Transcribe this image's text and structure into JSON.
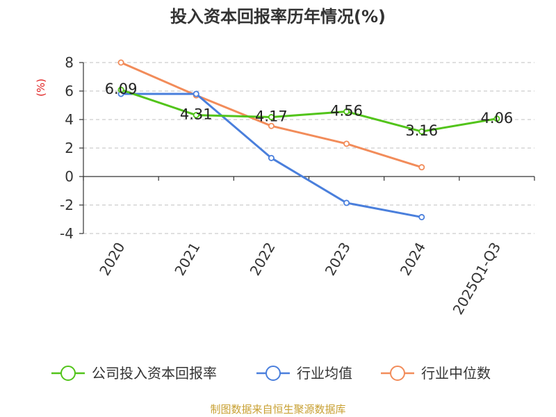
{
  "chart_data": {
    "type": "line",
    "title": "投入资本回报率历年情况(%)",
    "ylabel": "(%)",
    "xlabel": "",
    "categories": [
      "2020",
      "2021",
      "2022",
      "2023",
      "2024",
      "2025Q1-Q3"
    ],
    "ylim": [
      -4,
      8
    ],
    "yticks": [
      8,
      6,
      4,
      2,
      0,
      -2,
      -4
    ],
    "ytick_labels": [
      "8",
      "6",
      "4",
      "2",
      "0",
      "-2",
      "-4"
    ],
    "grid": true,
    "legend_position": "bottom",
    "series": [
      {
        "name": "公司投入资本回报率",
        "color": "#52c41a",
        "values": [
          6.09,
          4.31,
          4.17,
          4.56,
          3.16,
          4.06
        ],
        "data_labels": [
          "6.09",
          "4.31",
          "4.17",
          "4.56",
          "3.16",
          "4.06"
        ]
      },
      {
        "name": "行业均值",
        "color": "#4a7fdc",
        "values": [
          5.8,
          5.8,
          1.3,
          -1.85,
          -2.85,
          null
        ]
      },
      {
        "name": "行业中位数",
        "color": "#f28c5a",
        "values": [
          8.0,
          5.7,
          3.55,
          2.3,
          0.65,
          null
        ]
      }
    ],
    "source": "制图数据来自恒生聚源数据库",
    "label_color": "#e02020",
    "source_color": "#c8a032",
    "axis_color": "#333333",
    "grid_color": "#cccccc"
  }
}
